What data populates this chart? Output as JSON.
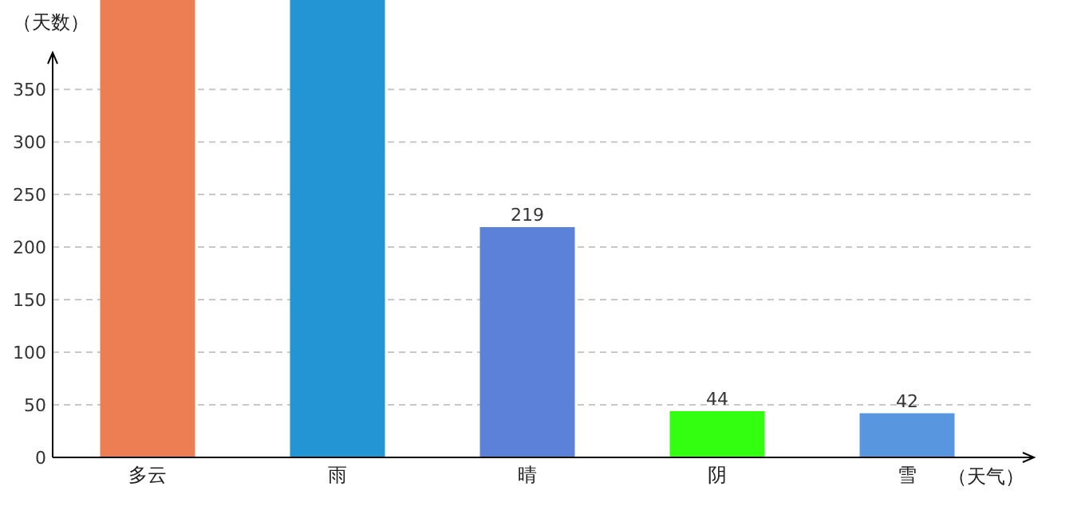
{
  "chart_data": {
    "type": "bar",
    "xlabel": "（天气）",
    "ylabel": "（天数）",
    "categories": [
      "多云",
      "雨",
      "晴",
      "阴",
      "雪"
    ],
    "values": [
      435,
      435,
      219,
      44,
      42
    ],
    "colors": [
      "#ed7d53",
      "#2394d4",
      "#5b82d8",
      "#33ff11",
      "#5897e0"
    ],
    "value_labels": [
      null,
      null,
      "219",
      "44",
      "42"
    ],
    "ylim": [
      0,
      435
    ],
    "yticks": [
      0,
      50,
      100,
      150,
      200,
      250,
      300,
      350
    ],
    "grid": "y"
  }
}
